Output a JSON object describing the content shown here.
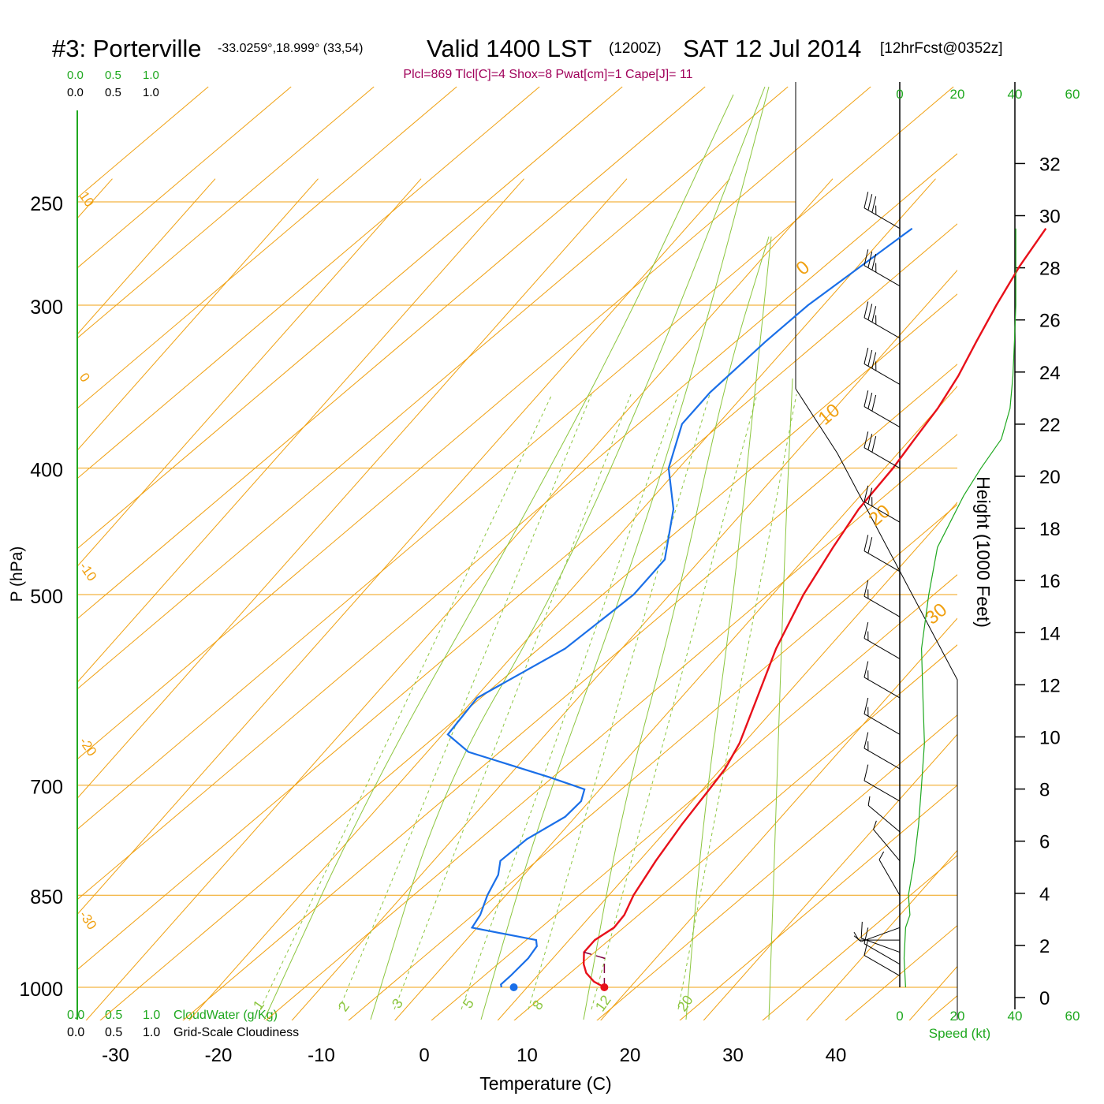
{
  "header": {
    "station": "#3: Porterville",
    "location": "-33.0259°,18.999° (33,54)",
    "valid_prefix": "Valid 1400 LST",
    "valid_z": "(1200Z)",
    "valid_date": "SAT 12 Jul 2014",
    "forecast": "[12hrFcst@0352z]",
    "params": "Plcl=869 Tlcl[C]=4 Shox=8 Pwat[cm]=1 Cape[J]= 11"
  },
  "colors": {
    "temperature": "#e8101a",
    "dewpoint": "#1a6fe8",
    "parcel": "#800040",
    "isobar_isotherm": "#f0a010",
    "mixing_ratio": "#8cc63f",
    "moist_adiabat": "#8cc63f",
    "windspeed_profile": "#1fa81f",
    "axis_text": "#000000",
    "cloud_text": "#1fa81f",
    "params_text": "#a0005a"
  },
  "cloud_scale": {
    "top_values": [
      "0.0",
      "0.5",
      "1.0"
    ],
    "bottom_values": [
      "0.0",
      "0.5",
      "1.0"
    ],
    "cloudwater_label": "CloudWater (g/Kg)",
    "cloudiness_label": "Grid-Scale Cloudiness"
  },
  "chart_data": {
    "type": "line",
    "title": "Skew-T log-P sounding",
    "xlabel": "Temperature (C)",
    "ylabel": "P (hPa)",
    "right_label": "Height (1000 Feet)",
    "speed_label": "Speed (kt)",
    "x_ticks": [
      -30,
      -20,
      -10,
      0,
      10,
      20,
      30,
      40
    ],
    "p_ticks": [
      250,
      300,
      400,
      500,
      700,
      850,
      1000
    ],
    "height_ticks": [
      0,
      2,
      4,
      6,
      8,
      10,
      12,
      14,
      16,
      18,
      20,
      22,
      24,
      26,
      28,
      30,
      32
    ],
    "speed_ticks": [
      "0",
      "20",
      "40",
      "60"
    ],
    "isotherm_labels": [
      "10",
      "0",
      "-10",
      "-20",
      "-30"
    ],
    "dry_adiabat_labels": [
      "0",
      "10",
      "20",
      "30"
    ],
    "mixing_ratio_labels": [
      "1",
      "2",
      "3",
      "5",
      "8",
      "12",
      "20"
    ],
    "series": [
      {
        "name": "temperature",
        "points": [
          [
            1000,
            17.5
          ],
          [
            990,
            16.0
          ],
          [
            975,
            14.5
          ],
          [
            960,
            13.5
          ],
          [
            940,
            12.5
          ],
          [
            920,
            12.5
          ],
          [
            900,
            13.3
          ],
          [
            880,
            13.2
          ],
          [
            850,
            12.4
          ],
          [
            800,
            11.6
          ],
          [
            750,
            11.0
          ],
          [
            700,
            10.6
          ],
          [
            680,
            10.4
          ],
          [
            650,
            9.6
          ],
          [
            600,
            7.4
          ],
          [
            550,
            5.0
          ],
          [
            500,
            3.0
          ],
          [
            460,
            1.8
          ],
          [
            430,
            1.0
          ],
          [
            400,
            0.8
          ],
          [
            380,
            0.4
          ],
          [
            360,
            0.0
          ],
          [
            340,
            -0.8
          ],
          [
            320,
            -2.0
          ],
          [
            300,
            -3.2
          ],
          [
            280,
            -4.3
          ],
          [
            262,
            -5.0
          ]
        ]
      },
      {
        "name": "dewpoint",
        "points": [
          [
            1000,
            7.5
          ],
          [
            995,
            7.2
          ],
          [
            980,
            7.4
          ],
          [
            950,
            7.6
          ],
          [
            930,
            7.4
          ],
          [
            920,
            6.8
          ],
          [
            900,
            -0.5
          ],
          [
            880,
            -0.8
          ],
          [
            850,
            -1.8
          ],
          [
            820,
            -2.5
          ],
          [
            800,
            -3.5
          ],
          [
            770,
            -2.8
          ],
          [
            740,
            -1.0
          ],
          [
            720,
            -0.8
          ],
          [
            705,
            -1.5
          ],
          [
            700,
            -3.0
          ],
          [
            690,
            -6.0
          ],
          [
            660,
            -16.0
          ],
          [
            640,
            -19.5
          ],
          [
            600,
            -19.8
          ],
          [
            550,
            -15.5
          ],
          [
            500,
            -13.5
          ],
          [
            470,
            -13.5
          ],
          [
            430,
            -17.0
          ],
          [
            400,
            -21.0
          ],
          [
            370,
            -23.5
          ],
          [
            350,
            -23.5
          ],
          [
            320,
            -22.5
          ],
          [
            300,
            -21.5
          ],
          [
            262,
            -18.0
          ]
        ]
      },
      {
        "name": "parcel",
        "points": [
          [
            1000,
            17.5
          ],
          [
            950,
            15.0
          ],
          [
            940,
            12.5
          ]
        ]
      },
      {
        "name": "surface_points",
        "points": [
          [
            1000,
            17.5
          ],
          [
            1000,
            8.7
          ]
        ]
      }
    ],
    "wind_speed_profile_kt": [
      [
        1000,
        2.0
      ],
      [
        950,
        1.5
      ],
      [
        900,
        2.0
      ],
      [
        880,
        3.5
      ],
      [
        850,
        3.0
      ],
      [
        800,
        5.0
      ],
      [
        750,
        6.5
      ],
      [
        700,
        7.5
      ],
      [
        650,
        8.5
      ],
      [
        600,
        8.0
      ],
      [
        550,
        7.5
      ],
      [
        500,
        10.0
      ],
      [
        460,
        13.0
      ],
      [
        420,
        22.0
      ],
      [
        400,
        28.0
      ],
      [
        380,
        35.0
      ],
      [
        360,
        38.0
      ],
      [
        340,
        39.0
      ],
      [
        320,
        39.5
      ],
      [
        300,
        40.0
      ],
      [
        262,
        40.0
      ]
    ],
    "wind_barbs": [
      {
        "p": 262,
        "dir": 300,
        "kt": 35
      },
      {
        "p": 290,
        "dir": 300,
        "kt": 35
      },
      {
        "p": 318,
        "dir": 300,
        "kt": 35
      },
      {
        "p": 345,
        "dir": 300,
        "kt": 35
      },
      {
        "p": 372,
        "dir": 300,
        "kt": 30
      },
      {
        "p": 400,
        "dir": 300,
        "kt": 30
      },
      {
        "p": 440,
        "dir": 300,
        "kt": 25
      },
      {
        "p": 480,
        "dir": 300,
        "kt": 20
      },
      {
        "p": 520,
        "dir": 300,
        "kt": 15
      },
      {
        "p": 560,
        "dir": 300,
        "kt": 15
      },
      {
        "p": 600,
        "dir": 300,
        "kt": 15
      },
      {
        "p": 640,
        "dir": 300,
        "kt": 15
      },
      {
        "p": 680,
        "dir": 300,
        "kt": 15
      },
      {
        "p": 720,
        "dir": 300,
        "kt": 10
      },
      {
        "p": 760,
        "dir": 310,
        "kt": 5
      },
      {
        "p": 800,
        "dir": 320,
        "kt": 5
      },
      {
        "p": 850,
        "dir": 330,
        "kt": 5
      },
      {
        "p": 900,
        "dir": 250,
        "kt": 5
      },
      {
        "p": 920,
        "dir": 270,
        "kt": 5
      },
      {
        "p": 940,
        "dir": 290,
        "kt": 10
      },
      {
        "p": 960,
        "dir": 300,
        "kt": 10
      },
      {
        "p": 980,
        "dir": 300,
        "kt": 10
      }
    ]
  }
}
